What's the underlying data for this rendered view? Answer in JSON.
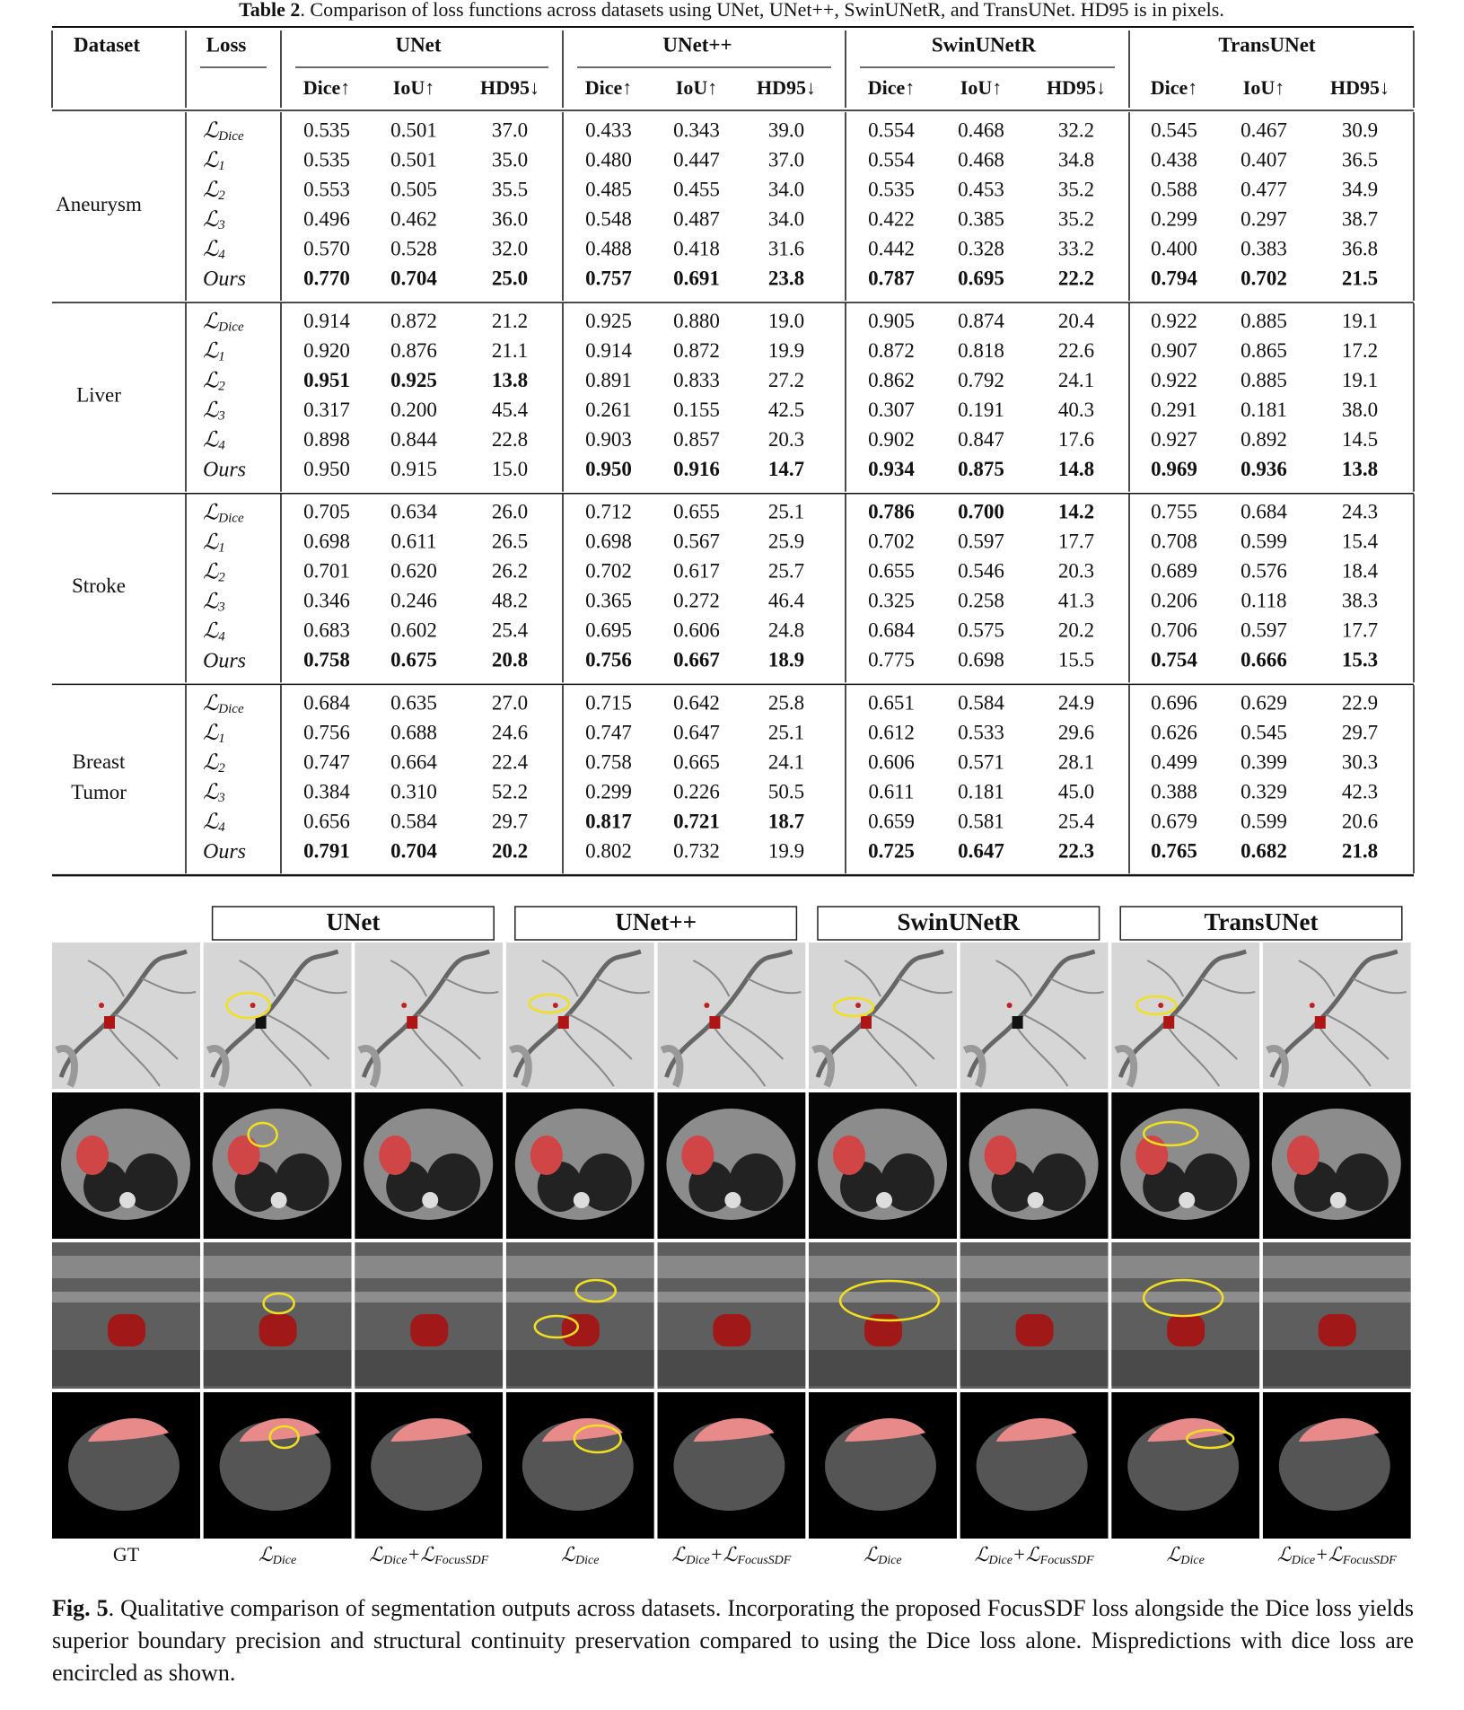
{
  "table": {
    "caption": {
      "label": "Table 2",
      "text": ". Comparison of loss functions across datasets using UNet, UNet++, SwinUNetR, and TransUNet. HD95 is in pixels."
    },
    "columns": {
      "dataset": "Dataset",
      "loss": "Loss"
    },
    "models": [
      "UNet",
      "UNet++",
      "SwinUNetR",
      "TransUNet"
    ],
    "metrics": [
      "Dice↑",
      "IoU↑",
      "HD95↓"
    ],
    "groups": [
      {
        "dataset": [
          "Aneurysm"
        ],
        "rows": [
          {
            "loss": {
              "main": "ℒ",
              "sub": "Dice"
            },
            "values": [
              "0.535",
              "0.501",
              "37.0",
              "0.433",
              "0.343",
              "39.0",
              "0.554",
              "0.468",
              "32.2",
              "0.545",
              "0.467",
              "30.9"
            ],
            "bold": [
              false,
              false,
              false,
              false
            ]
          },
          {
            "loss": {
              "main": "ℒ",
              "sub": "1"
            },
            "values": [
              "0.535",
              "0.501",
              "35.0",
              "0.480",
              "0.447",
              "37.0",
              "0.554",
              "0.468",
              "34.8",
              "0.438",
              "0.407",
              "36.5"
            ],
            "bold": [
              false,
              false,
              false,
              false
            ]
          },
          {
            "loss": {
              "main": "ℒ",
              "sub": "2"
            },
            "values": [
              "0.553",
              "0.505",
              "35.5",
              "0.485",
              "0.455",
              "34.0",
              "0.535",
              "0.453",
              "35.2",
              "0.588",
              "0.477",
              "34.9"
            ],
            "bold": [
              false,
              false,
              false,
              false
            ]
          },
          {
            "loss": {
              "main": "ℒ",
              "sub": "3"
            },
            "values": [
              "0.496",
              "0.462",
              "36.0",
              "0.548",
              "0.487",
              "34.0",
              "0.422",
              "0.385",
              "35.2",
              "0.299",
              "0.297",
              "38.7"
            ],
            "bold": [
              false,
              false,
              false,
              false
            ]
          },
          {
            "loss": {
              "main": "ℒ",
              "sub": "4"
            },
            "values": [
              "0.570",
              "0.528",
              "32.0",
              "0.488",
              "0.418",
              "31.6",
              "0.442",
              "0.328",
              "33.2",
              "0.400",
              "0.383",
              "36.8"
            ],
            "bold": [
              false,
              false,
              false,
              false
            ]
          },
          {
            "loss": {
              "main": "Ours"
            },
            "values": [
              "0.770",
              "0.704",
              "25.0",
              "0.757",
              "0.691",
              "23.8",
              "0.787",
              "0.695",
              "22.2",
              "0.794",
              "0.702",
              "21.5"
            ],
            "bold": [
              true,
              true,
              true,
              true
            ]
          }
        ]
      },
      {
        "dataset": [
          "Liver"
        ],
        "rows": [
          {
            "loss": {
              "main": "ℒ",
              "sub": "Dice"
            },
            "values": [
              "0.914",
              "0.872",
              "21.2",
              "0.925",
              "0.880",
              "19.0",
              "0.905",
              "0.874",
              "20.4",
              "0.922",
              "0.885",
              "19.1"
            ],
            "bold": [
              false,
              false,
              false,
              false
            ]
          },
          {
            "loss": {
              "main": "ℒ",
              "sub": "1"
            },
            "values": [
              "0.920",
              "0.876",
              "21.1",
              "0.914",
              "0.872",
              "19.9",
              "0.872",
              "0.818",
              "22.6",
              "0.907",
              "0.865",
              "17.2"
            ],
            "bold": [
              false,
              false,
              false,
              false
            ]
          },
          {
            "loss": {
              "main": "ℒ",
              "sub": "2"
            },
            "values": [
              "0.951",
              "0.925",
              "13.8",
              "0.891",
              "0.833",
              "27.2",
              "0.862",
              "0.792",
              "24.1",
              "0.922",
              "0.885",
              "19.1"
            ],
            "bold": [
              true,
              false,
              false,
              false
            ]
          },
          {
            "loss": {
              "main": "ℒ",
              "sub": "3"
            },
            "values": [
              "0.317",
              "0.200",
              "45.4",
              "0.261",
              "0.155",
              "42.5",
              "0.307",
              "0.191",
              "40.3",
              "0.291",
              "0.181",
              "38.0"
            ],
            "bold": [
              false,
              false,
              false,
              false
            ]
          },
          {
            "loss": {
              "main": "ℒ",
              "sub": "4"
            },
            "values": [
              "0.898",
              "0.844",
              "22.8",
              "0.903",
              "0.857",
              "20.3",
              "0.902",
              "0.847",
              "17.6",
              "0.927",
              "0.892",
              "14.5"
            ],
            "bold": [
              false,
              false,
              false,
              false
            ]
          },
          {
            "loss": {
              "main": "Ours"
            },
            "values": [
              "0.950",
              "0.915",
              "15.0",
              "0.950",
              "0.916",
              "14.7",
              "0.934",
              "0.875",
              "14.8",
              "0.969",
              "0.936",
              "13.8"
            ],
            "bold": [
              false,
              true,
              true,
              true
            ]
          }
        ]
      },
      {
        "dataset": [
          "Stroke"
        ],
        "rows": [
          {
            "loss": {
              "main": "ℒ",
              "sub": "Dice"
            },
            "values": [
              "0.705",
              "0.634",
              "26.0",
              "0.712",
              "0.655",
              "25.1",
              "0.786",
              "0.700",
              "14.2",
              "0.755",
              "0.684",
              "24.3"
            ],
            "bold": [
              false,
              false,
              true,
              false
            ]
          },
          {
            "loss": {
              "main": "ℒ",
              "sub": "1"
            },
            "values": [
              "0.698",
              "0.611",
              "26.5",
              "0.698",
              "0.567",
              "25.9",
              "0.702",
              "0.597",
              "17.7",
              "0.708",
              "0.599",
              "15.4"
            ],
            "bold": [
              false,
              false,
              false,
              false
            ]
          },
          {
            "loss": {
              "main": "ℒ",
              "sub": "2"
            },
            "values": [
              "0.701",
              "0.620",
              "26.2",
              "0.702",
              "0.617",
              "25.7",
              "0.655",
              "0.546",
              "20.3",
              "0.689",
              "0.576",
              "18.4"
            ],
            "bold": [
              false,
              false,
              false,
              false
            ]
          },
          {
            "loss": {
              "main": "ℒ",
              "sub": "3"
            },
            "values": [
              "0.346",
              "0.246",
              "48.2",
              "0.365",
              "0.272",
              "46.4",
              "0.325",
              "0.258",
              "41.3",
              "0.206",
              "0.118",
              "38.3"
            ],
            "bold": [
              false,
              false,
              false,
              false
            ]
          },
          {
            "loss": {
              "main": "ℒ",
              "sub": "4"
            },
            "values": [
              "0.683",
              "0.602",
              "25.4",
              "0.695",
              "0.606",
              "24.8",
              "0.684",
              "0.575",
              "20.2",
              "0.706",
              "0.597",
              "17.7"
            ],
            "bold": [
              false,
              false,
              false,
              false
            ]
          },
          {
            "loss": {
              "main": "Ours"
            },
            "values": [
              "0.758",
              "0.675",
              "20.8",
              "0.756",
              "0.667",
              "18.9",
              "0.775",
              "0.698",
              "15.5",
              "0.754",
              "0.666",
              "15.3"
            ],
            "bold": [
              true,
              true,
              false,
              true
            ]
          }
        ]
      },
      {
        "dataset": [
          "Breast",
          "Tumor"
        ],
        "rows": [
          {
            "loss": {
              "main": "ℒ",
              "sub": "Dice"
            },
            "values": [
              "0.684",
              "0.635",
              "27.0",
              "0.715",
              "0.642",
              "25.8",
              "0.651",
              "0.584",
              "24.9",
              "0.696",
              "0.629",
              "22.9"
            ],
            "bold": [
              false,
              false,
              false,
              false
            ]
          },
          {
            "loss": {
              "main": "ℒ",
              "sub": "1"
            },
            "values": [
              "0.756",
              "0.688",
              "24.6",
              "0.747",
              "0.647",
              "25.1",
              "0.612",
              "0.533",
              "29.6",
              "0.626",
              "0.545",
              "29.7"
            ],
            "bold": [
              false,
              false,
              false,
              false
            ]
          },
          {
            "loss": {
              "main": "ℒ",
              "sub": "2"
            },
            "values": [
              "0.747",
              "0.664",
              "22.4",
              "0.758",
              "0.665",
              "24.1",
              "0.606",
              "0.571",
              "28.1",
              "0.499",
              "0.399",
              "30.3"
            ],
            "bold": [
              false,
              false,
              false,
              false
            ]
          },
          {
            "loss": {
              "main": "ℒ",
              "sub": "3"
            },
            "values": [
              "0.384",
              "0.310",
              "52.2",
              "0.299",
              "0.226",
              "50.5",
              "0.611",
              "0.181",
              "45.0",
              "0.388",
              "0.329",
              "42.3"
            ],
            "bold": [
              false,
              false,
              false,
              false
            ]
          },
          {
            "loss": {
              "main": "ℒ",
              "sub": "4"
            },
            "values": [
              "0.656",
              "0.584",
              "29.7",
              "0.817",
              "0.721",
              "18.7",
              "0.659",
              "0.581",
              "25.4",
              "0.679",
              "0.599",
              "20.6"
            ],
            "bold": [
              false,
              true,
              false,
              false
            ]
          },
          {
            "loss": {
              "main": "Ours"
            },
            "values": [
              "0.791",
              "0.704",
              "20.2",
              "0.802",
              "0.732",
              "19.9",
              "0.725",
              "0.647",
              "22.3",
              "0.765",
              "0.682",
              "21.8"
            ],
            "bold": [
              true,
              false,
              true,
              true
            ]
          }
        ]
      }
    ]
  },
  "figure": {
    "column_headers": [
      "UNet",
      "UNet++",
      "SwinUNetR",
      "TransUNet"
    ],
    "column_labels": [
      [
        {
          "main": "GT"
        }
      ],
      [
        {
          "main": "ℒ",
          "sub": "Dice"
        }
      ],
      [
        {
          "main": "ℒ",
          "sub": "Dice"
        },
        {
          "main": "+ℒ",
          "sub": "FocusSDF"
        }
      ],
      [
        {
          "main": "ℒ",
          "sub": "Dice"
        }
      ],
      [
        {
          "main": "ℒ",
          "sub": "Dice"
        },
        {
          "main": "+ℒ",
          "sub": "FocusSDF"
        }
      ],
      [
        {
          "main": "ℒ",
          "sub": "Dice"
        }
      ],
      [
        {
          "main": "ℒ",
          "sub": "Dice"
        },
        {
          "main": "+ℒ",
          "sub": "FocusSDF"
        }
      ],
      [
        {
          "main": "ℒ",
          "sub": "Dice"
        }
      ],
      [
        {
          "main": "ℒ",
          "sub": "Dice"
        },
        {
          "main": "+ℒ",
          "sub": "FocusSDF"
        }
      ]
    ],
    "caption": {
      "label": "Fig. 5",
      "text": ". Qualitative comparison of segmentation outputs across datasets. Incorporating the proposed FocusSDF loss alongside the Dice loss yields superior boundary precision and structural continuity preservation compared to using the Dice loss alone. Mispredictions with dice loss are encircled as shown."
    }
  }
}
